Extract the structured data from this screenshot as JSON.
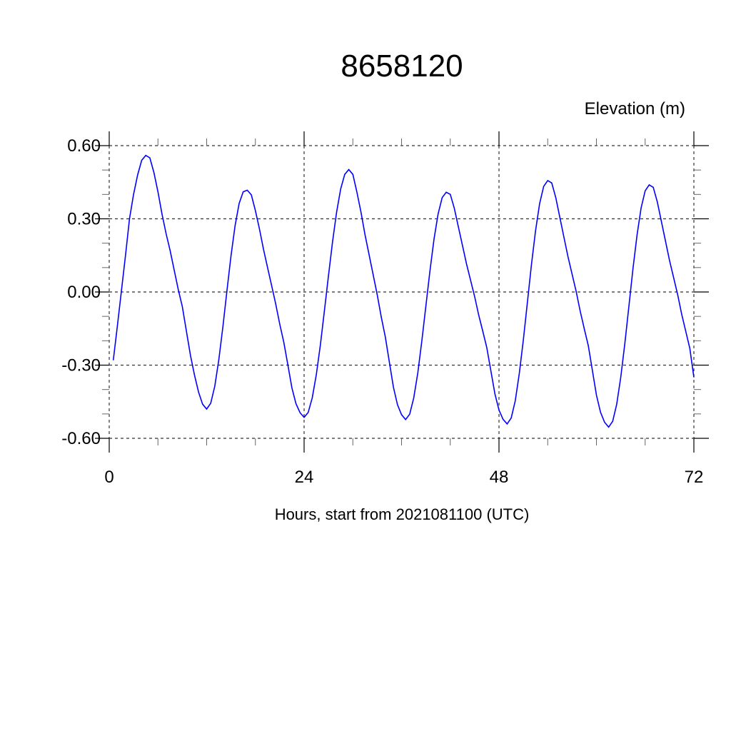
{
  "chart_data": {
    "type": "line",
    "title": "8658120",
    "ylabel": "Elevation (m)",
    "xlabel": "Hours, start from 2021081100 (UTC)",
    "xlim": [
      0,
      72
    ],
    "ylim": [
      -0.6,
      0.6
    ],
    "xticks": [
      0,
      24,
      48,
      72
    ],
    "xtick_labels": [
      "0",
      "24",
      "48",
      "72"
    ],
    "yticks": [
      0.6,
      0.3,
      0.0,
      -0.3,
      -0.6
    ],
    "ytick_labels": [
      "0.60",
      "0.30",
      "0.00",
      "-0.30",
      "-0.60"
    ],
    "grid": true,
    "line_color": "#0000ff",
    "series": [
      {
        "x": [
          0.5,
          1,
          1.5,
          2,
          2.5,
          3,
          3.5,
          4,
          4.5,
          5,
          5.5,
          6,
          6.5,
          7,
          7.5,
          8,
          8.5,
          9,
          9.5,
          10,
          10.5,
          11,
          11.5,
          12,
          12.5,
          13,
          13.5,
          14,
          14.5,
          15,
          15.5,
          16,
          16.5,
          17,
          17.5,
          18,
          18.5,
          19,
          19.5,
          20,
          20.5,
          21,
          21.5,
          22,
          22.5,
          23,
          23.5,
          24,
          24.5,
          25,
          25.5,
          26,
          26.5,
          27,
          27.5,
          28,
          28.5,
          29,
          29.5,
          30,
          30.5,
          31,
          31.5,
          32,
          32.5,
          33,
          33.5,
          34,
          34.5,
          35,
          35.5,
          36,
          36.5,
          37,
          37.5,
          38,
          38.5,
          39,
          39.5,
          40,
          40.5,
          41,
          41.5,
          42,
          42.5,
          43,
          43.5,
          44,
          44.5,
          45,
          45.5,
          46,
          46.5,
          47,
          47.5,
          48,
          48.5,
          49,
          49.5,
          50,
          50.5,
          51,
          51.5,
          52,
          52.5,
          53,
          53.5,
          54,
          54.5,
          55,
          55.5,
          56,
          56.5,
          57,
          57.5,
          58,
          58.5,
          59,
          59.5,
          60,
          60.5,
          61,
          61.5,
          62,
          62.5,
          63,
          63.5,
          64,
          64.5,
          65,
          65.5,
          66,
          66.5,
          67,
          67.5,
          68,
          68.5,
          69,
          69.5,
          70,
          70.5,
          71,
          71.5,
          72
        ],
        "y": [
          -0.28,
          -0.14,
          0.005,
          0.15,
          0.3,
          0.4,
          0.48,
          0.54,
          0.56,
          0.55,
          0.49,
          0.41,
          0.32,
          0.24,
          0.17,
          0.09,
          0.01,
          -0.06,
          -0.16,
          -0.26,
          -0.34,
          -0.41,
          -0.46,
          -0.48,
          -0.456,
          -0.386,
          -0.276,
          -0.141,
          0.005,
          0.148,
          0.272,
          0.363,
          0.411,
          0.417,
          0.398,
          0.333,
          0.259,
          0.175,
          0.1,
          0.026,
          -0.049,
          -0.132,
          -0.207,
          -0.3,
          -0.393,
          -0.458,
          -0.495,
          -0.514,
          -0.494,
          -0.434,
          -0.339,
          -0.217,
          -0.078,
          0.066,
          0.205,
          0.327,
          0.422,
          0.482,
          0.502,
          0.482,
          0.41,
          0.328,
          0.235,
          0.153,
          0.071,
          -0.011,
          -0.103,
          -0.185,
          -0.287,
          -0.39,
          -0.462,
          -0.503,
          -0.523,
          -0.501,
          -0.434,
          -0.331,
          -0.201,
          -0.057,
          0.087,
          0.217,
          0.32,
          0.387,
          0.409,
          0.4,
          0.343,
          0.267,
          0.191,
          0.115,
          0.048,
          -0.019,
          -0.095,
          -0.161,
          -0.228,
          -0.323,
          -0.418,
          -0.484,
          -0.522,
          -0.541,
          -0.517,
          -0.446,
          -0.335,
          -0.197,
          -0.042,
          0.113,
          0.251,
          0.362,
          0.433,
          0.457,
          0.447,
          0.386,
          0.305,
          0.224,
          0.144,
          0.073,
          0.002,
          -0.079,
          -0.15,
          -0.22,
          -0.321,
          -0.423,
          -0.493,
          -0.534,
          -0.554,
          -0.53,
          -0.46,
          -0.349,
          -0.211,
          -0.058,
          0.096,
          0.234,
          0.345,
          0.415,
          0.439,
          0.429,
          0.369,
          0.289,
          0.209,
          0.129,
          0.059,
          -0.011,
          -0.091,
          -0.161,
          -0.231,
          -0.35
        ]
      }
    ]
  }
}
